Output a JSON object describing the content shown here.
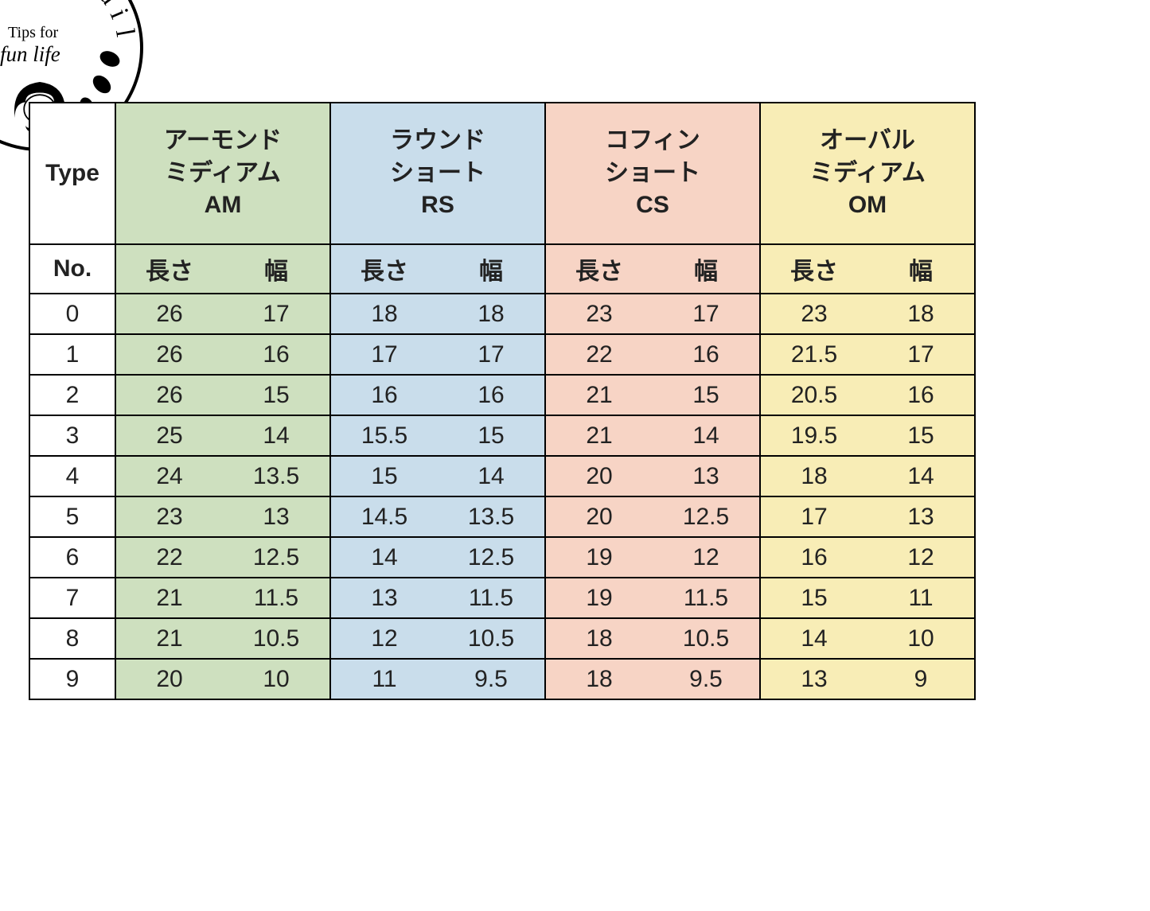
{
  "logo": {
    "arc_text": "mote Nail",
    "tips_line1": "Tips for",
    "tips_line2": "fun life",
    "registered_mark": "®"
  },
  "table": {
    "type_label": "Type",
    "no_label": "No.",
    "length_label": "長さ",
    "width_label": "幅",
    "types": [
      {
        "jp_line1": "アーモンド",
        "jp_line2": "ミディアム",
        "code": "AM",
        "fill": "#cee0bf"
      },
      {
        "jp_line1": "ラウンド",
        "jp_line2": "ショート",
        "code": "RS",
        "fill": "#c9ddeb"
      },
      {
        "jp_line1": "コフィン",
        "jp_line2": "ショート",
        "code": "CS",
        "fill": "#f7d4c5"
      },
      {
        "jp_line1": "オーバル",
        "jp_line2": "ミディアム",
        "code": "OM",
        "fill": "#f8edb6"
      }
    ],
    "rows": [
      {
        "no": "0",
        "v": [
          "26",
          "17",
          "18",
          "18",
          "23",
          "17",
          "23",
          "18"
        ]
      },
      {
        "no": "1",
        "v": [
          "26",
          "16",
          "17",
          "17",
          "22",
          "16",
          "21.5",
          "17"
        ]
      },
      {
        "no": "2",
        "v": [
          "26",
          "15",
          "16",
          "16",
          "21",
          "15",
          "20.5",
          "16"
        ]
      },
      {
        "no": "3",
        "v": [
          "25",
          "14",
          "15.5",
          "15",
          "21",
          "14",
          "19.5",
          "15"
        ]
      },
      {
        "no": "4",
        "v": [
          "24",
          "13.5",
          "15",
          "14",
          "20",
          "13",
          "18",
          "14"
        ]
      },
      {
        "no": "5",
        "v": [
          "23",
          "13",
          "14.5",
          "13.5",
          "20",
          "12.5",
          "17",
          "13"
        ]
      },
      {
        "no": "6",
        "v": [
          "22",
          "12.5",
          "14",
          "12.5",
          "19",
          "12",
          "16",
          "12"
        ]
      },
      {
        "no": "7",
        "v": [
          "21",
          "11.5",
          "13",
          "11.5",
          "19",
          "11.5",
          "15",
          "11"
        ]
      },
      {
        "no": "8",
        "v": [
          "21",
          "10.5",
          "12",
          "10.5",
          "18",
          "10.5",
          "14",
          "10"
        ]
      },
      {
        "no": "9",
        "v": [
          "20",
          "10",
          "11",
          "9.5",
          "18",
          "9.5",
          "13",
          "9"
        ]
      }
    ],
    "border_color": "#000000",
    "background_color": "#ffffff",
    "font_size_header": 30,
    "font_size_cell": 30,
    "row_height_header": 178,
    "row_height_sub": 62,
    "row_height_data": 51
  }
}
